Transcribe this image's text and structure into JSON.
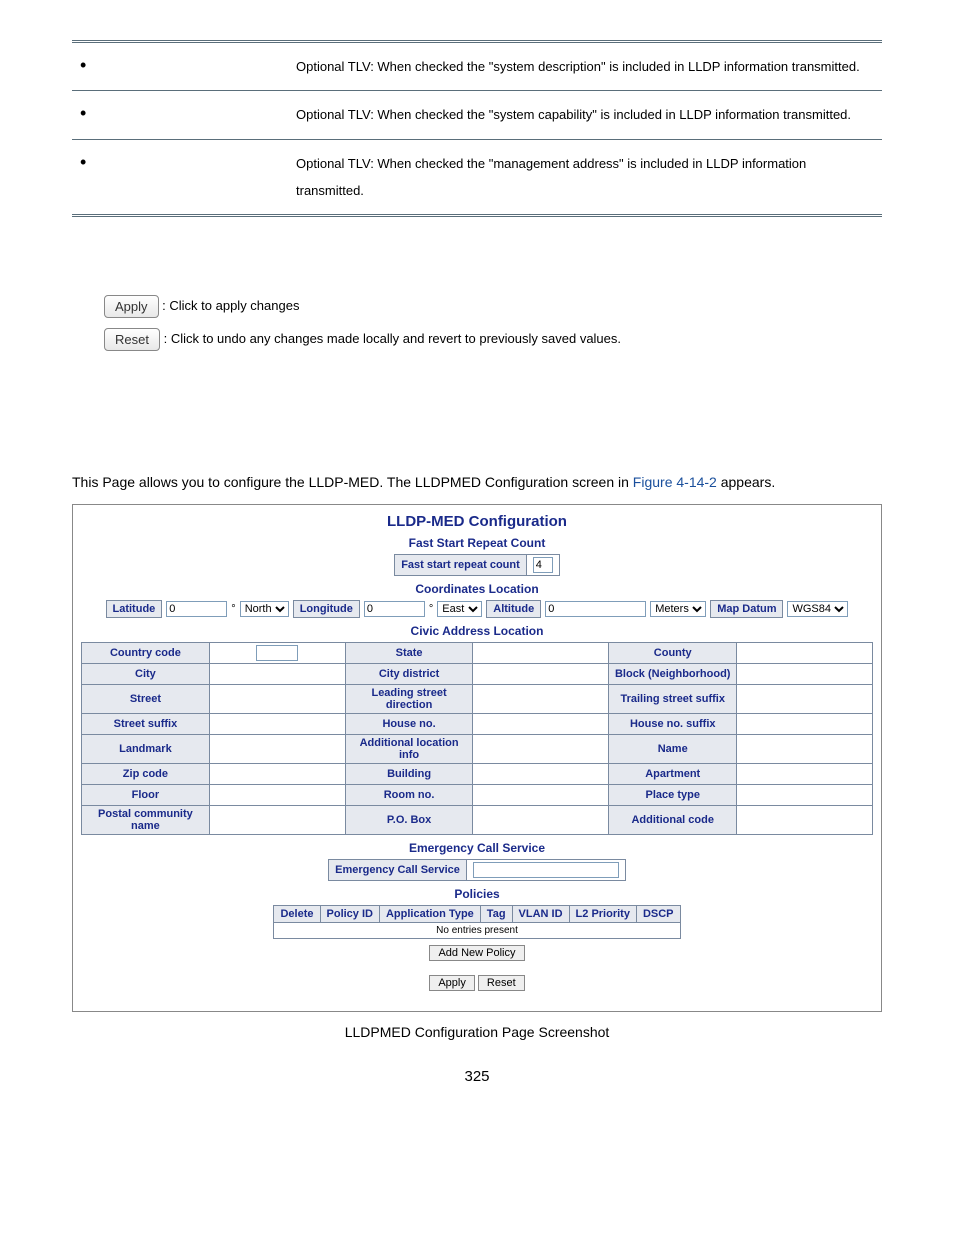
{
  "tlv_rows": [
    "Optional TLV: When checked the \"system description\" is included in LLDP information transmitted.",
    "Optional TLV: When checked the \"system capability\" is included in LLDP information transmitted.",
    "Optional TLV: When checked the \"management address\" is included in LLDP information transmitted."
  ],
  "buttons": {
    "apply": "Apply",
    "reset": "Reset",
    "apply_desc": ": Click to apply changes",
    "reset_desc": ": Click to undo any changes made locally and revert to previously saved values."
  },
  "intro": {
    "pre": "This Page allows you to configure the LLDP-MED. The LLDPMED Configuration screen in ",
    "figure": "Figure 4-14-2",
    "post": " appears."
  },
  "config": {
    "title": "LLDP-MED Configuration",
    "fast_start_heading": "Fast Start Repeat Count",
    "fast_start_label": "Fast start repeat count",
    "fast_start_value": "4",
    "coords_heading": "Coordinates Location",
    "coords": {
      "latitude_label": "Latitude",
      "latitude_value": "0",
      "latitude_deg": "°",
      "latitude_dir": "North",
      "longitude_label": "Longitude",
      "longitude_value": "0",
      "longitude_deg": "°",
      "longitude_dir": "East",
      "altitude_label": "Altitude",
      "altitude_value": "0",
      "altitude_unit": "Meters",
      "map_datum_label": "Map Datum",
      "map_datum_value": "WGS84"
    },
    "civic_heading": "Civic Address Location",
    "civic_rows": [
      [
        "Country code",
        "State",
        "County"
      ],
      [
        "City",
        "City district",
        "Block (Neighborhood)"
      ],
      [
        "Street",
        "Leading street direction",
        "Trailing street suffix"
      ],
      [
        "Street suffix",
        "House no.",
        "House no. suffix"
      ],
      [
        "Landmark",
        "Additional location info",
        "Name"
      ],
      [
        "Zip code",
        "Building",
        "Apartment"
      ],
      [
        "Floor",
        "Room no.",
        "Place type"
      ],
      [
        "Postal community name",
        "P.O. Box",
        "Additional code"
      ]
    ],
    "civic_country_value": "",
    "emergency_heading": "Emergency Call Service",
    "emergency_label": "Emergency Call Service",
    "policies_heading": "Policies",
    "policy_headers": [
      "Delete",
      "Policy ID",
      "Application Type",
      "Tag",
      "VLAN ID",
      "L2 Priority",
      "DSCP"
    ],
    "no_entries": "No entries present",
    "add_policy": "Add New Policy",
    "apply": "Apply",
    "reset": "Reset"
  },
  "caption": "LLDPMED Configuration Page Screenshot",
  "page_number": "325",
  "colors": {
    "header_blue": "#1a2a8a",
    "cell_bg": "#e6e9ef",
    "border": "#7a8aa0",
    "link": "#1a4f9c"
  }
}
